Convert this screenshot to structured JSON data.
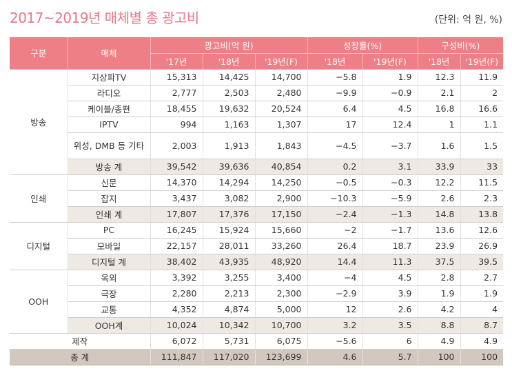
{
  "title": "2017~2019년 매체별 총 광고비",
  "unit": "(단위: 억 원, %)",
  "header": {
    "category": "구분",
    "media": "매체",
    "adspend": "광고비(억 원)",
    "growth": "성장률(%)",
    "share": "구성비(%)",
    "y17": "'17년",
    "y18": "'18년",
    "y19f": "'19년(F)",
    "g18": "'18년",
    "g19f": "'19년(F)",
    "s18": "'18년",
    "s19f": "'19년(F)"
  },
  "groups": [
    {
      "name": "방송",
      "rows": [
        {
          "media": "지상파TV",
          "v": [
            "15,313",
            "14,425",
            "14,700",
            "−5.8",
            "1.9",
            "12.3",
            "11.9"
          ]
        },
        {
          "media": "라디오",
          "v": [
            "2,777",
            "2,503",
            "2,480",
            "−9.9",
            "−0.9",
            "2.1",
            "2"
          ]
        },
        {
          "media": "케이블/종편",
          "v": [
            "18,455",
            "19,632",
            "20,524",
            "6.4",
            "4.5",
            "16.8",
            "16.6"
          ]
        },
        {
          "media": "IPTV",
          "v": [
            "994",
            "1,163",
            "1,307",
            "17",
            "12.4",
            "1",
            "1.1"
          ]
        },
        {
          "media": "위성, DMB 등 기타",
          "v": [
            "2,003",
            "1,913",
            "1,843",
            "−4.5",
            "−3.7",
            "1.6",
            "1.5"
          ]
        },
        {
          "media": "방송 계",
          "v": [
            "39,542",
            "39,636",
            "40,854",
            "0.2",
            "3.1",
            "33.9",
            "33"
          ]
        }
      ]
    },
    {
      "name": "인쇄",
      "rows": [
        {
          "media": "신문",
          "v": [
            "14,370",
            "14,294",
            "14,250",
            "−0.5",
            "−0.3",
            "12.2",
            "11.5"
          ]
        },
        {
          "media": "잡지",
          "v": [
            "3,437",
            "3,082",
            "2,900",
            "−10.3",
            "−5.9",
            "2.6",
            "2.3"
          ]
        },
        {
          "media": "인쇄 계",
          "v": [
            "17,807",
            "17,376",
            "17,150",
            "−2.4",
            "−1.3",
            "14.8",
            "13.8"
          ]
        }
      ]
    },
    {
      "name": "디지털",
      "rows": [
        {
          "media": "PC",
          "v": [
            "16,245",
            "15,924",
            "15,660",
            "−2",
            "−1.7",
            "13.6",
            "12.6"
          ]
        },
        {
          "media": "모바일",
          "v": [
            "22,157",
            "28,011",
            "33,260",
            "26.4",
            "18.7",
            "23.9",
            "26.9"
          ]
        },
        {
          "media": "디지털 계",
          "v": [
            "38,402",
            "43,935",
            "48,920",
            "14.4",
            "11.3",
            "37.5",
            "39.5"
          ]
        }
      ]
    },
    {
      "name": "OOH",
      "rows": [
        {
          "media": "옥외",
          "v": [
            "3,392",
            "3,255",
            "3,400",
            "−4",
            "4.5",
            "2.8",
            "2.7"
          ]
        },
        {
          "media": "극장",
          "v": [
            "2,280",
            "2,213",
            "2,300",
            "−2.9",
            "3.9",
            "1.9",
            "1.9"
          ]
        },
        {
          "media": "교통",
          "v": [
            "4,352",
            "4,874",
            "5,000",
            "12",
            "2.6",
            "4.2",
            "4"
          ]
        },
        {
          "media": "OOH계",
          "v": [
            "10,024",
            "10,342",
            "10,700",
            "3.2",
            "3.5",
            "8.8",
            "8.7"
          ]
        }
      ]
    }
  ],
  "production": {
    "label": "제작",
    "v": [
      "6,072",
      "5,731",
      "6,075",
      "−5.6",
      "6",
      "4.9",
      "4.9"
    ]
  },
  "total": {
    "label": "총 계",
    "v": [
      "111,847",
      "117,020",
      "123,699",
      "4.6",
      "5.7",
      "100",
      "100"
    ]
  }
}
